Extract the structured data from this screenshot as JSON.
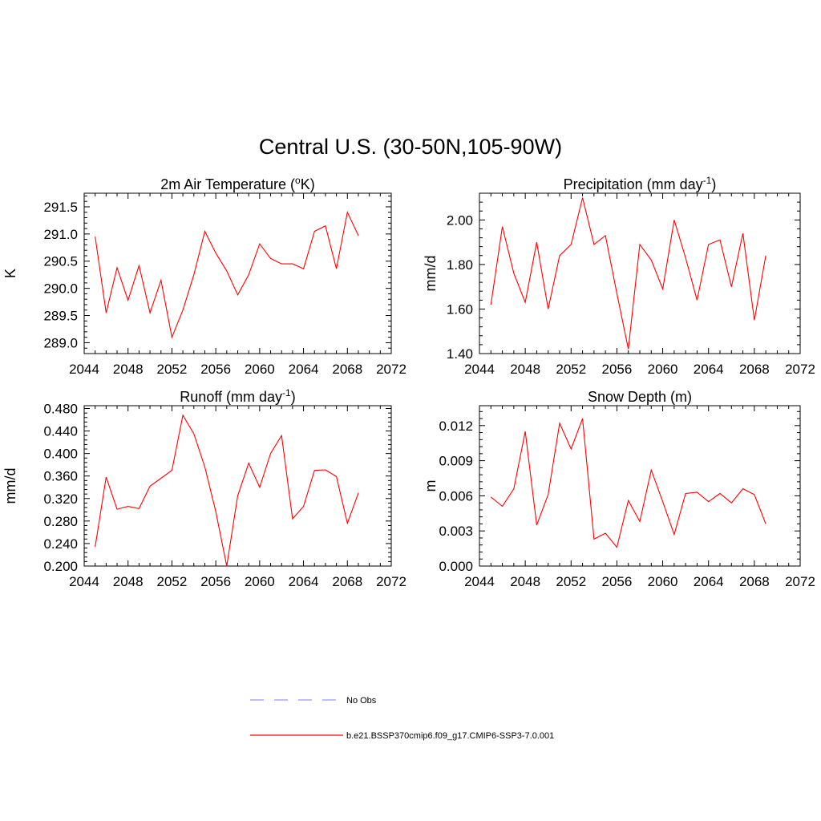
{
  "title": "Central U.S. (30-50N,105-90W)",
  "chart_data": [
    {
      "type": "line",
      "title": "2m Air Temperature (",
      "title_sup": "o",
      "title_suffix": "K)",
      "ylabel": "K",
      "xlim": [
        2044,
        2072
      ],
      "ylim": [
        288.8,
        291.75
      ],
      "xticks": [
        2044,
        2048,
        2052,
        2056,
        2060,
        2064,
        2068,
        2072
      ],
      "xtick_labels": [
        "2044",
        "2048",
        "2052",
        "2056",
        "2060",
        "2064",
        "2068",
        "2072"
      ],
      "yticks": [
        289.0,
        289.5,
        290.0,
        290.5,
        291.0,
        291.5
      ],
      "ytick_labels": [
        "289.0",
        "289.5",
        "290.0",
        "290.5",
        "291.0",
        "291.5"
      ],
      "grid": false,
      "series": [
        {
          "name": "b.e21.BSSP370cmip6.f09_g17.CMIP6-SSP3-7.0.001",
          "color": "#ff0000",
          "x": [
            2045,
            2046,
            2047,
            2048,
            2049,
            2050,
            2051,
            2052,
            2053,
            2054,
            2055,
            2056,
            2057,
            2058,
            2059,
            2060,
            2061,
            2062,
            2063,
            2064,
            2065,
            2066,
            2067,
            2068,
            2069
          ],
          "y": [
            290.95,
            289.55,
            290.38,
            289.78,
            290.42,
            289.55,
            290.15,
            289.1,
            289.6,
            290.25,
            291.05,
            290.65,
            290.32,
            289.88,
            290.25,
            290.82,
            290.55,
            290.45,
            290.45,
            290.36,
            291.05,
            291.15,
            290.36,
            291.4,
            290.97
          ]
        }
      ]
    },
    {
      "type": "line",
      "title": "Precipitation (mm day",
      "title_sup": "-1",
      "title_suffix": ")",
      "ylabel": "mm/d",
      "xlim": [
        2044,
        2072
      ],
      "ylim": [
        1.4,
        2.12
      ],
      "xticks": [
        2044,
        2048,
        2052,
        2056,
        2060,
        2064,
        2068,
        2072
      ],
      "xtick_labels": [
        "2044",
        "2048",
        "2052",
        "2056",
        "2060",
        "2064",
        "2068",
        "2072"
      ],
      "yticks": [
        1.4,
        1.6,
        1.8,
        2.0
      ],
      "ytick_labels": [
        "1.40",
        "1.60",
        "1.80",
        "2.00"
      ],
      "grid": false,
      "series": [
        {
          "name": "b.e21.BSSP370cmip6.f09_g17.CMIP6-SSP3-7.0.001",
          "color": "#ff0000",
          "x": [
            2045,
            2046,
            2047,
            2048,
            2049,
            2050,
            2051,
            2052,
            2053,
            2054,
            2055,
            2056,
            2057,
            2058,
            2059,
            2060,
            2061,
            2062,
            2063,
            2064,
            2065,
            2066,
            2067,
            2068,
            2069
          ],
          "y": [
            1.62,
            1.97,
            1.76,
            1.63,
            1.9,
            1.6,
            1.84,
            1.89,
            2.1,
            1.89,
            1.93,
            1.67,
            1.42,
            1.89,
            1.82,
            1.69,
            2.0,
            1.83,
            1.64,
            1.89,
            1.91,
            1.7,
            1.94,
            1.55,
            1.84
          ]
        }
      ]
    },
    {
      "type": "line",
      "title": "Runoff (mm day",
      "title_sup": "-1",
      "title_suffix": ")",
      "ylabel": "mm/d",
      "xlim": [
        2044,
        2072
      ],
      "ylim": [
        0.2,
        0.485
      ],
      "xticks": [
        2044,
        2048,
        2052,
        2056,
        2060,
        2064,
        2068,
        2072
      ],
      "xtick_labels": [
        "2044",
        "2048",
        "2052",
        "2056",
        "2060",
        "2064",
        "2068",
        "2072"
      ],
      "yticks": [
        0.2,
        0.24,
        0.28,
        0.32,
        0.36,
        0.4,
        0.44,
        0.48
      ],
      "ytick_labels": [
        "0.200",
        "0.240",
        "0.280",
        "0.320",
        "0.360",
        "0.400",
        "0.440",
        "0.480"
      ],
      "grid": false,
      "series": [
        {
          "name": "b.e21.BSSP370cmip6.f09_g17.CMIP6-SSP3-7.0.001",
          "color": "#ff0000",
          "x": [
            2045,
            2046,
            2047,
            2048,
            2049,
            2050,
            2051,
            2052,
            2053,
            2054,
            2055,
            2056,
            2057,
            2058,
            2059,
            2060,
            2061,
            2062,
            2063,
            2064,
            2065,
            2066,
            2067,
            2068,
            2069
          ],
          "y": [
            0.234,
            0.358,
            0.301,
            0.306,
            0.302,
            0.342,
            0.356,
            0.37,
            0.468,
            0.435,
            0.376,
            0.297,
            0.2,
            0.325,
            0.383,
            0.34,
            0.4,
            0.432,
            0.284,
            0.306,
            0.37,
            0.371,
            0.359,
            0.276,
            0.33
          ]
        }
      ]
    },
    {
      "type": "line",
      "title": "Snow Depth (m)",
      "title_sup": "",
      "title_suffix": "",
      "ylabel": "m",
      "xlim": [
        2044,
        2072
      ],
      "ylim": [
        0.0,
        0.0137
      ],
      "xticks": [
        2044,
        2048,
        2052,
        2056,
        2060,
        2064,
        2068,
        2072
      ],
      "xtick_labels": [
        "2044",
        "2048",
        "2052",
        "2056",
        "2060",
        "2064",
        "2068",
        "2072"
      ],
      "yticks": [
        0.0,
        0.003,
        0.006,
        0.009,
        0.012
      ],
      "ytick_labels": [
        "0.000",
        "0.003",
        "0.006",
        "0.009",
        "0.012"
      ],
      "grid": false,
      "series": [
        {
          "name": "b.e21.BSSP370cmip6.f09_g17.CMIP6-SSP3-7.0.001",
          "color": "#ff0000",
          "x": [
            2045,
            2046,
            2047,
            2048,
            2049,
            2050,
            2051,
            2052,
            2053,
            2054,
            2055,
            2056,
            2057,
            2058,
            2059,
            2060,
            2061,
            2062,
            2063,
            2064,
            2065,
            2066,
            2067,
            2068,
            2069
          ],
          "y": [
            0.0059,
            0.0051,
            0.0066,
            0.0115,
            0.0035,
            0.0061,
            0.0122,
            0.01,
            0.0126,
            0.0023,
            0.0028,
            0.0016,
            0.0056,
            0.0038,
            0.0082,
            0.0055,
            0.0027,
            0.0062,
            0.0063,
            0.0055,
            0.0062,
            0.0054,
            0.0066,
            0.0061,
            0.0036
          ]
        }
      ]
    }
  ],
  "legend": [
    {
      "label": "No Obs",
      "color": "#9999ff",
      "style": "dashed"
    },
    {
      "label": "b.e21.BSSP370cmip6.f09_g17.CMIP6-SSP3-7.0.001",
      "color": "#ff0000",
      "style": "solid"
    }
  ]
}
